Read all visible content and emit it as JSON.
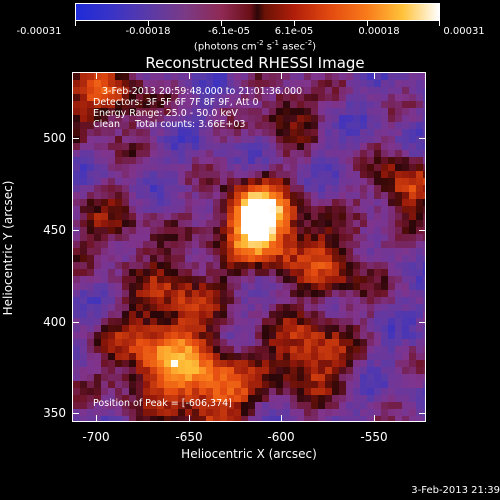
{
  "colorbar": {
    "labels": [
      "-0.00031",
      "-0.00018",
      "-6.1e-05",
      "6.1e-05",
      "0.00018",
      "0.00031"
    ],
    "units_base": "(photons cm",
    "units_exp1": "-2",
    "units_mid1": " s",
    "units_exp2": "-1",
    "units_mid2": " asec",
    "units_exp3": "-2",
    "units_end": ")",
    "colors": {
      "low": "#1f2bd8",
      "mid": "#2a0608",
      "high": "#ffffff"
    }
  },
  "title": "Reconstructed RHESSI Image",
  "info": {
    "line1": "3-Feb-2013 20:59:48.000 to 21:01:36.000",
    "line2": "Detectors: 3F 5F 6F 7F 8F 9F, Att 0",
    "line3": "Energy Range: 25.0 - 50.0 keV",
    "line4": "Clean     Total counts: 3.66E+03",
    "peak": "Position of Peak = [-606,374]"
  },
  "axes": {
    "xlabel": "Heliocentric X (arcsec)",
    "ylabel": "Heliocentric Y (arcsec)",
    "xticks": [
      "-700",
      "-650",
      "-600",
      "-550"
    ],
    "yticks": [
      "500",
      "450",
      "400",
      "350"
    ],
    "x_range": [
      -712,
      -524
    ],
    "y_range": [
      343,
      531
    ]
  },
  "timestamp": "3-Feb-2013 21:39"
}
